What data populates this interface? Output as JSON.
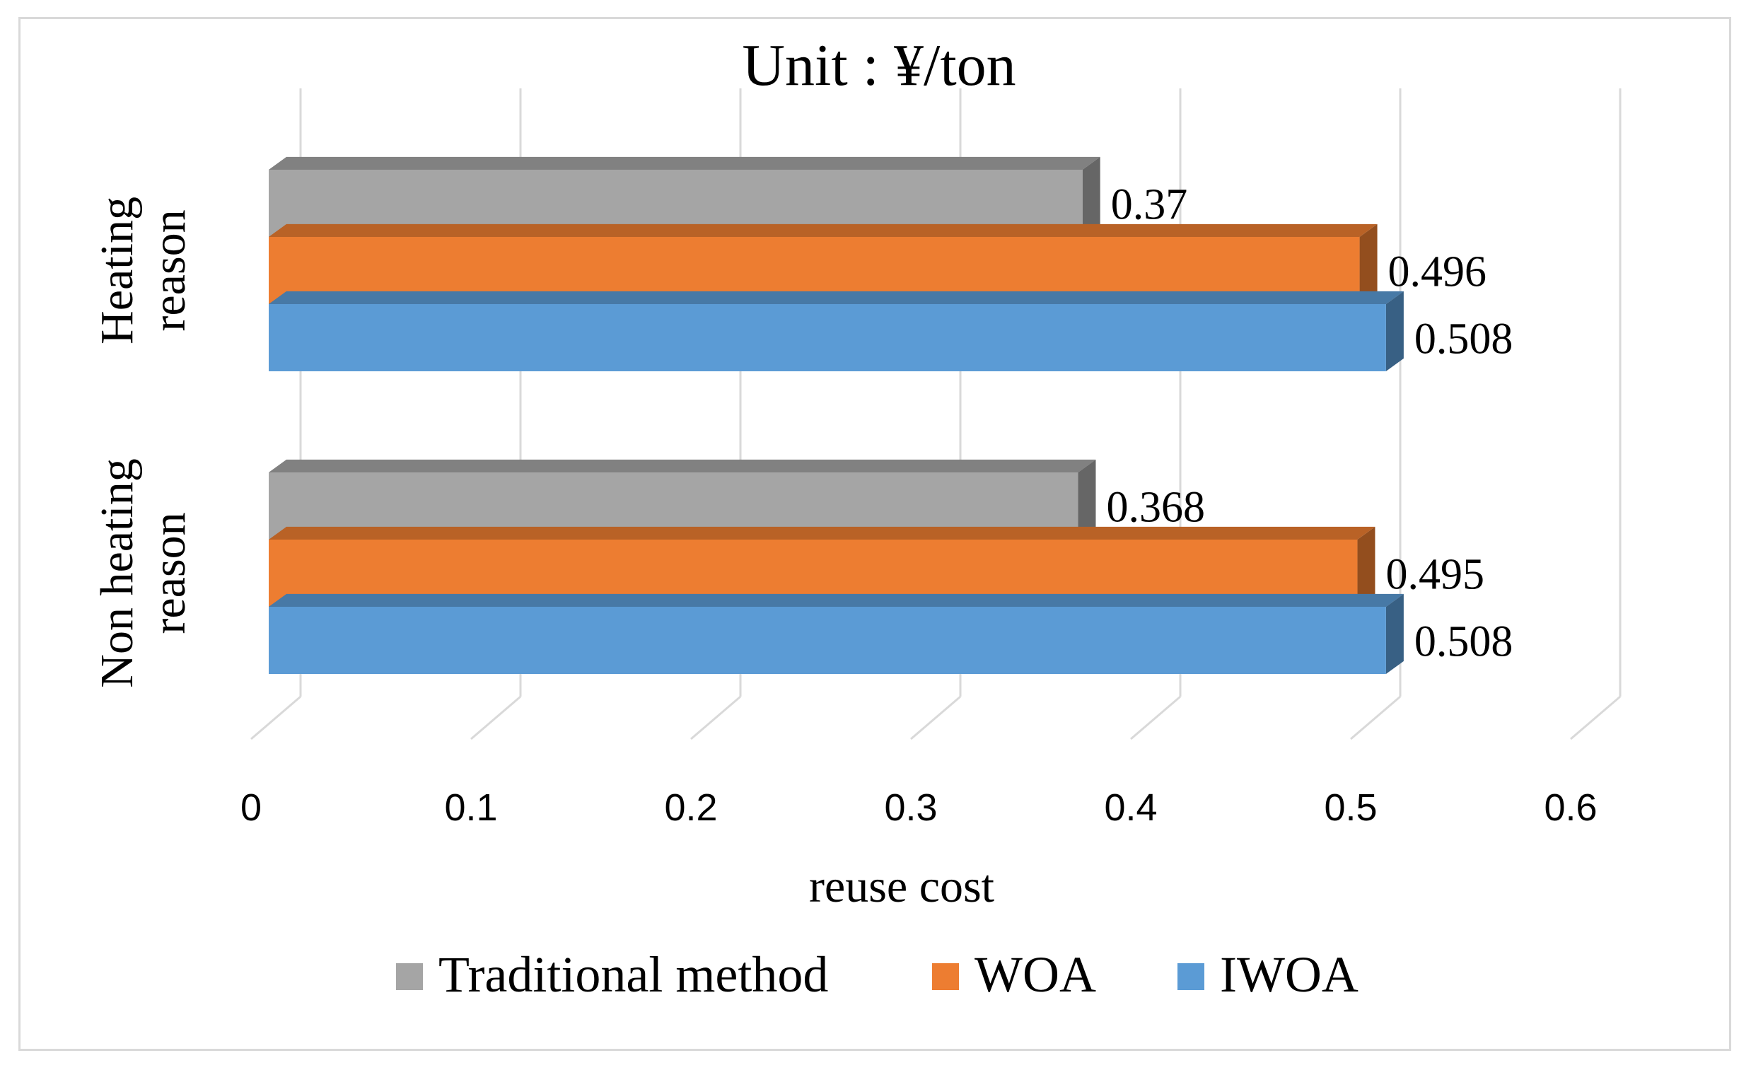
{
  "chart_data": {
    "type": "bar",
    "orientation": "horizontal",
    "style": "3d-clustered",
    "title": "Unit : ¥/ton",
    "xlabel": "reuse cost",
    "ylabel": "",
    "xlim": [
      0,
      0.6
    ],
    "x_ticks": [
      "0",
      "0.1",
      "0.2",
      "0.3",
      "0.4",
      "0.5",
      "0.6"
    ],
    "grid": true,
    "legend_position": "bottom",
    "categories": [
      {
        "line1": "Heating",
        "line2": "reason"
      },
      {
        "line1": "Non heating",
        "line2": "reason"
      }
    ],
    "series": [
      {
        "name": "Traditional method",
        "color": "#a5a5a5",
        "values": [
          0.37,
          0.368
        ],
        "labels": [
          "0.37",
          "0.368"
        ]
      },
      {
        "name": "WOA",
        "color": "#ed7d31",
        "values": [
          0.496,
          0.495
        ],
        "labels": [
          "0.496",
          "0.495"
        ]
      },
      {
        "name": "IWOA",
        "color": "#5b9bd5",
        "values": [
          0.508,
          0.508
        ],
        "labels": [
          "0.508",
          "0.508"
        ]
      }
    ]
  }
}
